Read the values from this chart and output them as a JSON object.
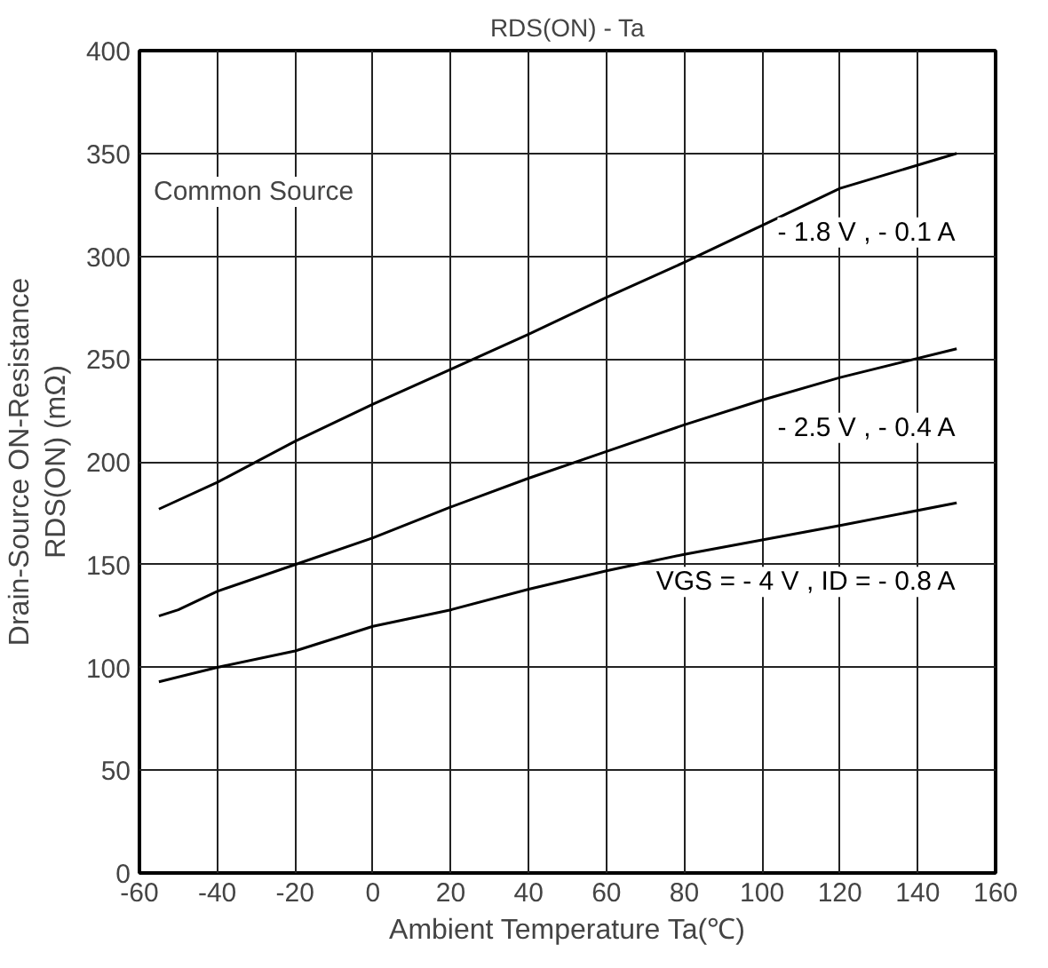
{
  "chart_data": {
    "type": "line",
    "title": "RDS(ON) - Ta",
    "xlabel": "Ambient Temperature Ta(℃)",
    "ylabel": "Drain-Source ON-Resistance\nRDS(ON) (mΩ)",
    "xlim": [
      -60,
      160
    ],
    "xticks": [
      -60,
      -40,
      -20,
      0,
      20,
      40,
      60,
      80,
      100,
      120,
      140,
      160
    ],
    "ylim": [
      0,
      400
    ],
    "yticks": [
      0,
      50,
      100,
      150,
      200,
      250,
      300,
      350,
      400
    ],
    "grid": true,
    "marker": "none",
    "line_style": "solid",
    "series": [
      {
        "name": "- 1.8 V , - 0.1 A",
        "color": "#000000",
        "x": [
          -55,
          -40,
          -20,
          0,
          20,
          40,
          60,
          80,
          100,
          120,
          150
        ],
        "values": [
          177,
          190,
          210,
          228,
          245,
          262,
          280,
          297,
          315,
          333,
          350
        ]
      },
      {
        "name": "- 2.5 V , - 0.4 A",
        "color": "#000000",
        "x": [
          -55,
          -50,
          -40,
          -20,
          0,
          20,
          40,
          60,
          80,
          100,
          120,
          150
        ],
        "values": [
          125,
          128,
          137,
          150,
          163,
          178,
          192,
          205,
          218,
          230,
          241,
          255
        ]
      },
      {
        "name": "VGS = - 4 V , ID = - 0.8 A",
        "color": "#000000",
        "x": [
          -55,
          -40,
          -20,
          0,
          20,
          40,
          60,
          80,
          100,
          120,
          150
        ],
        "values": [
          93,
          100,
          108,
          120,
          128,
          138,
          147,
          155,
          162,
          169,
          180
        ]
      }
    ],
    "annotations": [
      "Common Source"
    ]
  }
}
